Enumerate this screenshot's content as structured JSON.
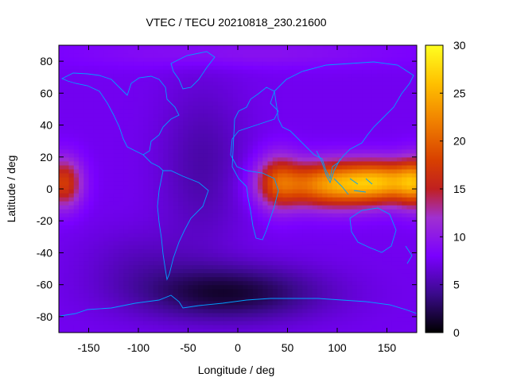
{
  "chart_data": {
    "type": "heatmap",
    "title": "VTEC / TECU 20210818_230.21600",
    "xlabel": "Longitude / deg",
    "ylabel": "Latitude / deg",
    "xlim": [
      -180,
      180
    ],
    "ylim": [
      -90,
      90
    ],
    "xticks": [
      -150,
      -100,
      -50,
      0,
      50,
      100,
      150
    ],
    "yticks": [
      -80,
      -60,
      -40,
      -20,
      0,
      20,
      40,
      60,
      80
    ],
    "colorbar": {
      "min": 0,
      "max": 30,
      "ticks": [
        0,
        5,
        10,
        15,
        20,
        25,
        30
      ],
      "stops": [
        {
          "v": 0,
          "color": "#000000"
        },
        {
          "v": 4,
          "color": "#3a0a8a"
        },
        {
          "v": 8,
          "color": "#7a00ff"
        },
        {
          "v": 12,
          "color": "#a030d0"
        },
        {
          "v": 15,
          "color": "#c02020"
        },
        {
          "v": 18,
          "color": "#d84000"
        },
        {
          "v": 22,
          "color": "#f08000"
        },
        {
          "v": 26,
          "color": "#ffc000"
        },
        {
          "v": 30,
          "color": "#ffff20"
        }
      ]
    },
    "grid": false,
    "map_overlay_color": "#00a0ff",
    "cell_deg": [
      5,
      2.5
    ],
    "field_features": [
      {
        "name": "background",
        "value": 7.5
      },
      {
        "lon": 95,
        "lat": 3,
        "amp": 15.5,
        "slon": 38,
        "slat": 10
      },
      {
        "lon": 150,
        "lat": 5,
        "amp": 12,
        "slon": 28,
        "slat": 9
      },
      {
        "lon": 40,
        "lat": 5,
        "amp": 8,
        "slon": 15,
        "slat": 12
      },
      {
        "lon": -175,
        "lat": 4,
        "amp": 10,
        "slon": 13,
        "slat": 11
      },
      {
        "lon": 180,
        "lat": 4,
        "amp": 10,
        "slon": 13,
        "slat": 11
      },
      {
        "lon": -10,
        "lat": -65,
        "amp": -6,
        "slon": 65,
        "slat": 12
      },
      {
        "lon": -35,
        "lat": 15,
        "amp": -2.5,
        "slon": 30,
        "slat": 35
      },
      {
        "lon": -100,
        "lat": -45,
        "amp": -1.5,
        "slon": 40,
        "slat": 15
      },
      {
        "lon": 0,
        "lat": 85,
        "amp": 2,
        "slon": 120,
        "slat": 6
      }
    ]
  }
}
